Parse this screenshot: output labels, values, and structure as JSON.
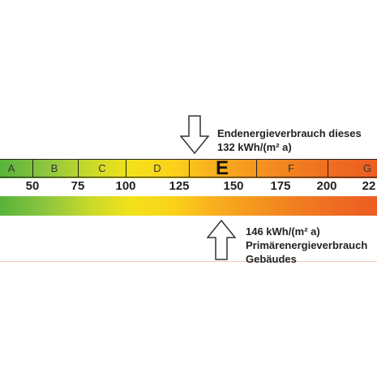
{
  "classes": [
    {
      "label": "A"
    },
    {
      "label": "B"
    },
    {
      "label": "C"
    },
    {
      "label": "D"
    },
    {
      "label": "E",
      "active": true
    },
    {
      "label": "F"
    },
    {
      "label": "G"
    }
  ],
  "ticks": [
    "50",
    "75",
    "100",
    "125",
    "150",
    "175",
    "200",
    "22"
  ],
  "end_energy": {
    "line1": "Endenergieverbrauch dieses",
    "line2": "132 kWh/(m² a)"
  },
  "primary_energy": {
    "line1": "146 kWh/(m² a)",
    "line2": "Primärenergieverbrauch",
    "line3": "Gebäudes"
  },
  "colors": {
    "green": "#57b33a",
    "yellow": "#f3e21a",
    "orange": "#f59a1f",
    "red": "#ec5e22"
  }
}
